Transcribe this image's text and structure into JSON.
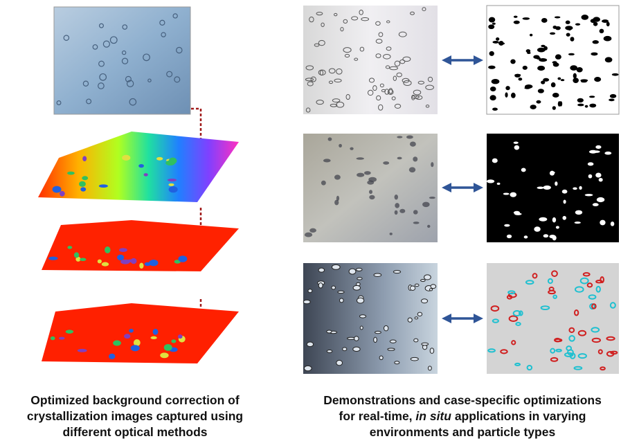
{
  "captions": {
    "left": [
      "Optimized background correction of",
      "crystallization images captured using",
      "different optical methods"
    ],
    "right": {
      "line1": "Demonstrations and case-specific optimizations",
      "line2": {
        "before": "for real-time, ",
        "italic": "in situ",
        "after": " applications in varying"
      },
      "line3": "environments and particle types"
    }
  }
}
